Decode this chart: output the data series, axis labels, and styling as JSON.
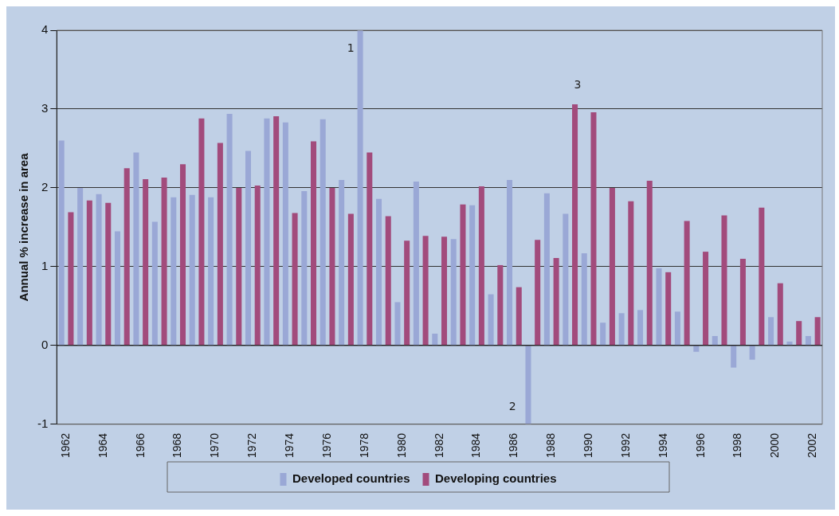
{
  "chart_data": {
    "type": "bar",
    "ylabel": "Annual % increase in area",
    "categories": [
      "1962",
      null,
      "1964",
      null,
      "1966",
      null,
      "1968",
      null,
      "1970",
      null,
      "1972",
      null,
      "1974",
      null,
      "1976",
      null,
      "1978",
      null,
      "1980",
      null,
      "1982",
      null,
      "1984",
      null,
      "1986",
      null,
      "1988",
      null,
      "1990",
      null,
      "1992",
      null,
      "1994",
      null,
      "1996",
      null,
      "1998",
      null,
      "2000",
      null,
      "2002"
    ],
    "series": [
      {
        "name": "Developed countries",
        "color": "#9aa8d6",
        "values": [
          2.6,
          2.0,
          1.92,
          1.45,
          2.45,
          1.57,
          1.88,
          1.91,
          1.88,
          2.94,
          2.47,
          2.88,
          2.83,
          1.96,
          2.87,
          2.1,
          4.0,
          1.86,
          0.55,
          2.08,
          0.15,
          1.35,
          1.78,
          0.65,
          2.1,
          -1.0,
          1.93,
          1.67,
          1.17,
          0.29,
          0.41,
          0.45,
          0.98,
          0.43,
          -0.08,
          0.12,
          -0.28,
          -0.18,
          0.36,
          0.05,
          0.12
        ]
      },
      {
        "name": "Developing countries",
        "color": "#a24b7c",
        "values": [
          1.69,
          1.84,
          1.81,
          2.25,
          2.11,
          2.13,
          2.3,
          2.88,
          2.57,
          2.0,
          2.03,
          2.91,
          1.68,
          2.59,
          2.0,
          1.67,
          2.45,
          1.64,
          1.33,
          1.39,
          1.38,
          1.79,
          2.02,
          1.02,
          0.74,
          1.34,
          1.11,
          3.06,
          2.96,
          2.0,
          1.83,
          2.09,
          0.93,
          1.58,
          1.19,
          1.65,
          1.1,
          1.75,
          0.79,
          0.31,
          0.36
        ]
      }
    ],
    "ylim": [
      -1,
      4
    ],
    "yticks": [
      -1,
      0,
      1,
      2,
      3,
      4
    ],
    "grid": "y",
    "legend": "bottom",
    "annotations": [
      {
        "text": "1",
        "x": "1978",
        "y": 4.0
      },
      "2",
      "3"
    ]
  }
}
